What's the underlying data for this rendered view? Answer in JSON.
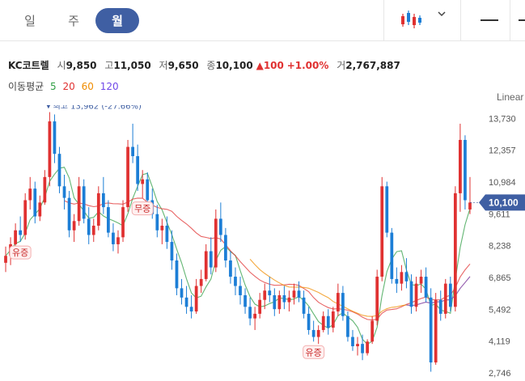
{
  "tabs": [
    "일",
    "주",
    "월"
  ],
  "active_tab": 2,
  "stock": {
    "name": "KC코트렐",
    "open_label": "시",
    "open": "9,850",
    "high_label": "고",
    "high": "11,050",
    "low_label": "저",
    "low": "9,650",
    "close_label": "종",
    "close": "10,100",
    "change": "100",
    "change_pct": "+1.00%",
    "volume_label": "거",
    "volume": "2,767,887"
  },
  "ma": {
    "label": "이동평균",
    "periods": [
      "5",
      "20",
      "60",
      "120"
    ],
    "colors": [
      "#2f9e44",
      "#e03131",
      "#f08c00",
      "#7048e8"
    ]
  },
  "scale_label": "Linear",
  "chart_data": {
    "type": "candlestick",
    "ylim": [
      2400,
      14300
    ],
    "y_ticks": [
      "13,730",
      "12,357",
      "10,984",
      "9,611",
      "8,238",
      "6,865",
      "5,492",
      "4,119",
      "2,746"
    ],
    "y_tick_values": [
      13730,
      12357,
      10984,
      9611,
      8238,
      6865,
      5492,
      4119,
      2746
    ],
    "current_price_label": "10,100",
    "current_price": 10100,
    "high_annotation": "최고 13,962 (-27.66%)",
    "markers": [
      "유증",
      "무증",
      "유증"
    ],
    "up_color": "#e03131",
    "down_color": "#1c7ed6",
    "candles": [
      [
        7500,
        8200,
        7100,
        7800
      ],
      [
        7800,
        8600,
        7400,
        8300
      ],
      [
        8300,
        9200,
        8000,
        8900
      ],
      [
        8900,
        9500,
        8400,
        8700
      ],
      [
        8700,
        10500,
        8500,
        10200
      ],
      [
        10200,
        11200,
        9800,
        10700
      ],
      [
        10700,
        11000,
        9200,
        9500
      ],
      [
        9500,
        10400,
        9300,
        10100
      ],
      [
        10100,
        11500,
        10000,
        11200
      ],
      [
        11200,
        14000,
        10800,
        13600
      ],
      [
        13600,
        13900,
        11800,
        12200
      ],
      [
        12200,
        12500,
        10500,
        10800
      ],
      [
        10800,
        11300,
        9800,
        10300
      ],
      [
        10300,
        10600,
        8600,
        8900
      ],
      [
        8900,
        9600,
        8400,
        9300
      ],
      [
        9300,
        11200,
        9100,
        10800
      ],
      [
        10800,
        11100,
        9200,
        9400
      ],
      [
        9400,
        9900,
        8300,
        8700
      ],
      [
        8700,
        9400,
        8400,
        9100
      ],
      [
        9100,
        10800,
        8900,
        10500
      ],
      [
        10500,
        11200,
        9600,
        9900
      ],
      [
        9900,
        10200,
        8600,
        8800
      ],
      [
        8800,
        9200,
        8000,
        8300
      ],
      [
        8300,
        8900,
        7900,
        8600
      ],
      [
        8600,
        10200,
        8400,
        9900
      ],
      [
        9900,
        12800,
        9700,
        12500
      ],
      [
        12500,
        13500,
        11800,
        12100
      ],
      [
        12100,
        12600,
        10600,
        10900
      ],
      [
        10900,
        11500,
        10300,
        11100
      ],
      [
        11100,
        11400,
        9900,
        10200
      ],
      [
        10200,
        10700,
        9400,
        9600
      ],
      [
        9600,
        10000,
        8600,
        8900
      ],
      [
        8900,
        9400,
        8300,
        9100
      ],
      [
        9100,
        9500,
        8100,
        8400
      ],
      [
        8400,
        8900,
        7200,
        7600
      ],
      [
        7600,
        7900,
        6100,
        6400
      ],
      [
        6400,
        6800,
        5700,
        6000
      ],
      [
        6000,
        6500,
        5300,
        5600
      ],
      [
        5600,
        6100,
        5100,
        5400
      ],
      [
        5400,
        6800,
        5300,
        6500
      ],
      [
        6500,
        7200,
        6200,
        6800
      ],
      [
        6800,
        8300,
        6700,
        8000
      ],
      [
        8000,
        8600,
        7000,
        7300
      ],
      [
        7300,
        9800,
        7100,
        9400
      ],
      [
        9400,
        10100,
        8400,
        8700
      ],
      [
        8700,
        9000,
        7300,
        7600
      ],
      [
        7600,
        8000,
        6600,
        6900
      ],
      [
        6900,
        7300,
        6100,
        6500
      ],
      [
        6500,
        6900,
        5700,
        6100
      ],
      [
        6100,
        6400,
        5300,
        5600
      ],
      [
        5600,
        6000,
        4800,
        5100
      ],
      [
        5100,
        5600,
        4600,
        5300
      ],
      [
        5300,
        6200,
        5100,
        5900
      ],
      [
        5900,
        6600,
        5500,
        6300
      ],
      [
        6300,
        6900,
        5800,
        6100
      ],
      [
        6100,
        6400,
        5200,
        5500
      ],
      [
        5500,
        6300,
        5300,
        6100
      ],
      [
        6100,
        6500,
        5500,
        5800
      ],
      [
        5800,
        6300,
        5400,
        6000
      ],
      [
        6000,
        6600,
        5700,
        6300
      ],
      [
        6300,
        6700,
        5800,
        6000
      ],
      [
        6000,
        6300,
        5100,
        5300
      ],
      [
        5300,
        5600,
        4400,
        4600
      ],
      [
        4600,
        5000,
        4100,
        4300
      ],
      [
        4300,
        4800,
        4000,
        4600
      ],
      [
        4600,
        5400,
        4500,
        5200
      ],
      [
        5200,
        5500,
        4400,
        4700
      ],
      [
        4700,
        5600,
        4500,
        5400
      ],
      [
        5400,
        6600,
        5200,
        6200
      ],
      [
        6200,
        6500,
        5000,
        5200
      ],
      [
        5200,
        5400,
        4100,
        4300
      ],
      [
        4300,
        4600,
        3700,
        3900
      ],
      [
        3900,
        4300,
        3500,
        4000
      ],
      [
        4000,
        4400,
        3300,
        3600
      ],
      [
        3600,
        4200,
        3500,
        4100
      ],
      [
        4100,
        5200,
        4000,
        5000
      ],
      [
        5000,
        7200,
        4800,
        6900
      ],
      [
        6900,
        11200,
        6700,
        10800
      ],
      [
        10800,
        11000,
        8600,
        8800
      ],
      [
        8800,
        9000,
        6600,
        6800
      ],
      [
        6800,
        7300,
        6200,
        6600
      ],
      [
        6600,
        7400,
        6300,
        7100
      ],
      [
        7100,
        7700,
        6400,
        6700
      ],
      [
        6700,
        7000,
        5300,
        5600
      ],
      [
        5600,
        6900,
        5400,
        6600
      ],
      [
        6600,
        7200,
        6200,
        6900
      ],
      [
        6900,
        7300,
        5800,
        6000
      ],
      [
        6000,
        6400,
        2800,
        3200
      ],
      [
        3200,
        6200,
        3100,
        5900
      ],
      [
        5900,
        6300,
        5000,
        5300
      ],
      [
        5300,
        6800,
        5100,
        6600
      ],
      [
        6600,
        6900,
        5400,
        5600
      ],
      [
        5600,
        10800,
        5400,
        10500
      ],
      [
        10500,
        13500,
        9700,
        12800
      ],
      [
        12800,
        13000,
        9800,
        10200
      ],
      [
        9800,
        11200,
        9600,
        10100
      ]
    ]
  }
}
